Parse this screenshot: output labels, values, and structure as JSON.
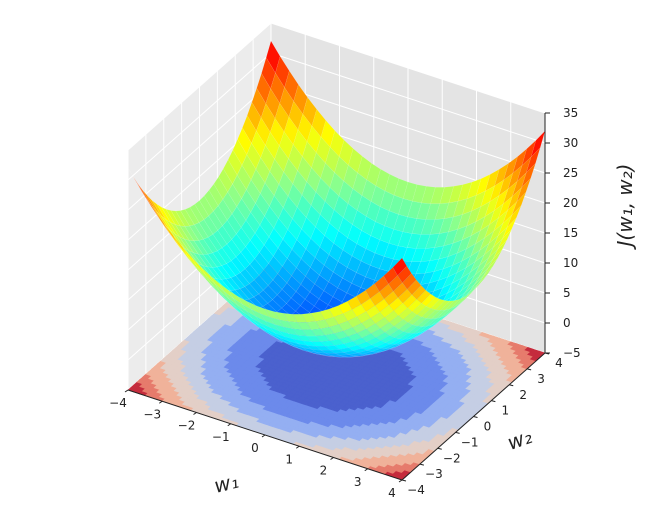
{
  "chart_data": {
    "type": "surface3d",
    "function": "J(w1,w2) = w1^2 + w2^2",
    "xlabel": "w₁",
    "ylabel": "w₂",
    "zlabel": "J(w₁, w₂)",
    "xlim": [
      -4,
      4
    ],
    "ylim": [
      -4,
      4
    ],
    "zlim": [
      -5,
      35
    ],
    "x_ticks": [
      "−4",
      "−3",
      "−2",
      "−1",
      "0",
      "1",
      "2",
      "3",
      "4"
    ],
    "y_ticks": [
      "−4",
      "−3",
      "−2",
      "−1",
      "0",
      "1",
      "2",
      "3",
      "4"
    ],
    "z_ticks": [
      "−5",
      "0",
      "5",
      "10",
      "15",
      "20",
      "25",
      "30",
      "35"
    ],
    "surface_colormap": "jet",
    "contour_colormap": "coolwarm",
    "contour_offset_z": -5,
    "contour_levels": [
      0,
      4,
      8,
      12,
      16,
      20,
      24,
      28,
      32
    ],
    "grid": true
  }
}
